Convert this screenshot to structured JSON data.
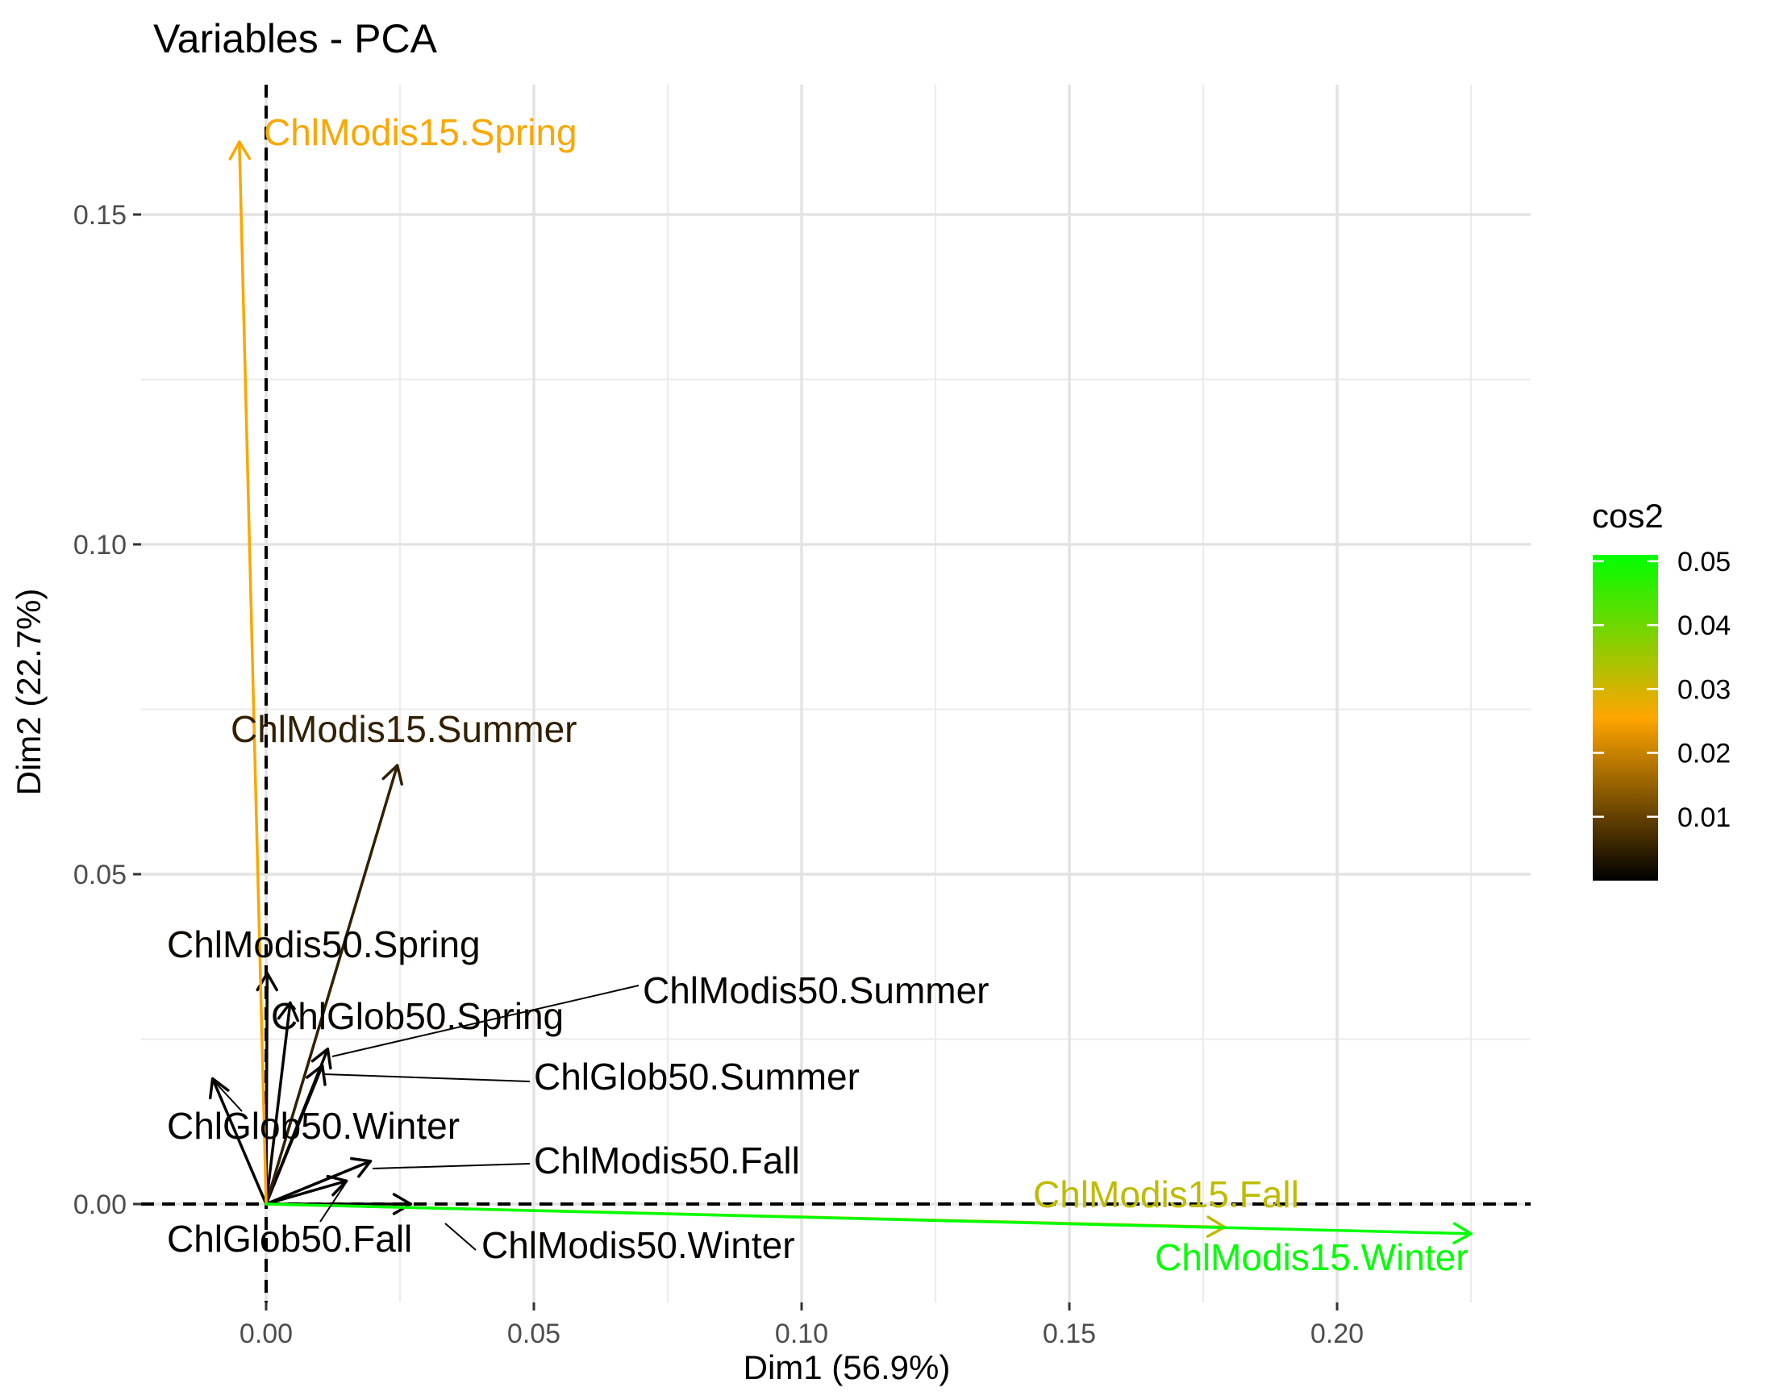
{
  "chart_data": {
    "type": "scatter",
    "subtype": "pca-variable-arrows",
    "title": "Variables - PCA",
    "xlabel": "Dim1 (56.9%)",
    "ylabel": "Dim2 (22.7%)",
    "xlim": [
      -0.0215,
      0.236
    ],
    "ylim": [
      -0.0125,
      0.1675
    ],
    "x_ticks": [
      0.0,
      0.05,
      0.1,
      0.15,
      0.2
    ],
    "x_tick_labels": [
      "0.00",
      "0.05",
      "0.10",
      "0.15",
      "0.20"
    ],
    "y_ticks": [
      0.0,
      0.05,
      0.1,
      0.15
    ],
    "y_tick_labels": [
      "0.00",
      "0.05",
      "0.10",
      "0.15"
    ],
    "grid": true,
    "reference_lines": {
      "x": 0,
      "y": 0,
      "style": "dashed"
    },
    "color_legend": {
      "title": "cos2",
      "position": "right",
      "min": 0.0,
      "max": 0.051,
      "ticks": [
        0.01,
        0.02,
        0.03,
        0.04,
        0.05
      ],
      "tick_labels": [
        "0.01",
        "0.02",
        "0.03",
        "0.04",
        "0.05"
      ],
      "colors": [
        "#000000",
        "#ffa500",
        "#00ff00"
      ]
    },
    "variables": [
      {
        "name": "ChlModis15.Spring",
        "x": -0.005,
        "y": 0.161,
        "cos2": 0.026
      },
      {
        "name": "ChlModis15.Summer",
        "x": 0.0245,
        "y": 0.0665,
        "cos2": 0.005
      },
      {
        "name": "ChlModis50.Spring",
        "x": 0.0002,
        "y": 0.035,
        "cos2": 0.0012
      },
      {
        "name": "ChlGlob50.Spring",
        "x": 0.0045,
        "y": 0.0305,
        "cos2": 0.0009
      },
      {
        "name": "ChlModis50.Summer",
        "x": 0.0115,
        "y": 0.0235,
        "cos2": 0.0007
      },
      {
        "name": "ChlGlob50.Summer",
        "x": 0.0105,
        "y": 0.021,
        "cos2": 0.0005
      },
      {
        "name": "ChlGlob50.Winter",
        "x": -0.01,
        "y": 0.019,
        "cos2": 0.0004
      },
      {
        "name": "ChlModis50.Fall",
        "x": 0.0195,
        "y": 0.0065,
        "cos2": 0.0004
      },
      {
        "name": "ChlGlob50.Fall",
        "x": 0.015,
        "y": 0.0035,
        "cos2": 0.0002
      },
      {
        "name": "ChlModis50.Winter",
        "x": 0.027,
        "y": 0.0,
        "cos2": 0.0006
      },
      {
        "name": "ChlModis15.Fall",
        "x": 0.179,
        "y": -0.0035,
        "cos2": 0.032
      },
      {
        "name": "ChlModis15.Winter",
        "x": 0.225,
        "y": -0.0045,
        "cos2": 0.051
      }
    ]
  }
}
